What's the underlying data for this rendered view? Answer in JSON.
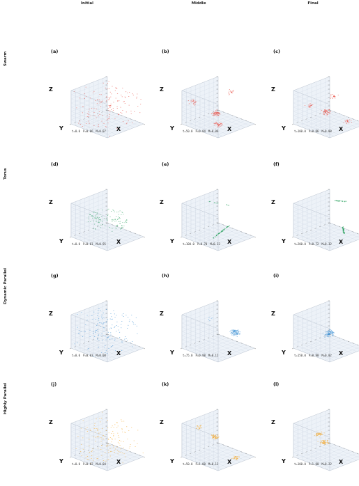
{
  "column_titles": [
    "Initial",
    "Middle",
    "Final"
  ],
  "row_titles": [
    "Swarm",
    "Torus",
    "Dynamic Parallel",
    "Highly Parallel"
  ],
  "colors": {
    "swarm": "#e8473c",
    "torus": "#2ca25f",
    "dynamic_parallel": "#3b8fd4",
    "highly_parallel": "#f5a623",
    "pane": "#edf2f8",
    "grid": "#d3dbe6",
    "edge": "#b9c2cf"
  },
  "chart_data": [
    {
      "type": "scatter",
      "panel_label": "(a)",
      "row": "Swarm",
      "column": "Initial",
      "xlabel": "X",
      "ylabel": "Y",
      "zlabel": "Z",
      "t": "t=0.0",
      "P": "P=0.06",
      "M": "M=0.07",
      "distribution": "uniform-random",
      "color": "#e8473c",
      "grid": true
    },
    {
      "type": "scatter",
      "panel_label": "(b)",
      "row": "Swarm",
      "column": "Middle",
      "xlabel": "X",
      "ylabel": "Y",
      "zlabel": "Z",
      "t": "t=50.0",
      "P": "P=0.04",
      "M": "M=0.06",
      "distribution": "clusters",
      "color": "#e8473c",
      "grid": true
    },
    {
      "type": "scatter",
      "panel_label": "(c)",
      "row": "Swarm",
      "column": "Final",
      "xlabel": "X",
      "ylabel": "Y",
      "zlabel": "Z",
      "t": "t=100.0",
      "P": "P=0.06",
      "M": "M=0.08",
      "distribution": "clusters",
      "color": "#e8473c",
      "grid": true
    },
    {
      "type": "scatter",
      "panel_label": "(d)",
      "row": "Torus",
      "column": "Initial",
      "xlabel": "X",
      "ylabel": "Y",
      "zlabel": "Z",
      "t": "t=0.0",
      "P": "P=0.01",
      "M": "M=0.95",
      "distribution": "torus-ring",
      "color": "#2ca25f",
      "grid": true
    },
    {
      "type": "scatter",
      "panel_label": "(e)",
      "row": "Torus",
      "column": "Middle",
      "xlabel": "X",
      "ylabel": "Y",
      "zlabel": "Z",
      "t": "t=100.0",
      "P": "P=0.70",
      "M": "M=0.22",
      "distribution": "streams",
      "color": "#2ca25f",
      "grid": true
    },
    {
      "type": "scatter",
      "panel_label": "(f)",
      "row": "Torus",
      "column": "Final",
      "xlabel": "X",
      "ylabel": "Y",
      "zlabel": "Z",
      "t": "t=200.0",
      "P": "P=0.72",
      "M": "M=0.32",
      "distribution": "streams",
      "color": "#2ca25f",
      "grid": true
    },
    {
      "type": "scatter",
      "panel_label": "(g)",
      "row": "Dynamic Parallel",
      "column": "Initial",
      "xlabel": "X",
      "ylabel": "Y",
      "zlabel": "Z",
      "t": "t=0.0",
      "P": "P=0.03",
      "M": "M=0.08",
      "distribution": "uniform-random",
      "color": "#3b8fd4",
      "grid": true
    },
    {
      "type": "scatter",
      "panel_label": "(h)",
      "row": "Dynamic Parallel",
      "column": "Middle",
      "xlabel": "X",
      "ylabel": "Y",
      "zlabel": "Z",
      "t": "t=75.0",
      "P": "P=0.98",
      "M": "M=0.12",
      "distribution": "single-cluster",
      "color": "#3b8fd4",
      "grid": true
    },
    {
      "type": "scatter",
      "panel_label": "(i)",
      "row": "Dynamic Parallel",
      "column": "Final",
      "xlabel": "X",
      "ylabel": "Y",
      "zlabel": "Z",
      "t": "t=150.0",
      "P": "P=0.98",
      "M": "M=0.02",
      "distribution": "single-cluster",
      "color": "#3b8fd4",
      "grid": true
    },
    {
      "type": "scatter",
      "panel_label": "(j)",
      "row": "Highly Parallel",
      "column": "Initial",
      "xlabel": "X",
      "ylabel": "Y",
      "zlabel": "Z",
      "t": "t=0.0",
      "P": "P=0.02",
      "M": "M=0.04",
      "distribution": "uniform-random",
      "color": "#f5a623",
      "grid": true
    },
    {
      "type": "scatter",
      "panel_label": "(k)",
      "row": "Highly Parallel",
      "column": "Middle",
      "xlabel": "X",
      "ylabel": "Y",
      "zlabel": "Z",
      "t": "t=50.0",
      "P": "P=1.00",
      "M": "M=0.12",
      "distribution": "clusters",
      "color": "#f5a623",
      "grid": true
    },
    {
      "type": "scatter",
      "panel_label": "(l)",
      "row": "Highly Parallel",
      "column": "Final",
      "xlabel": "X",
      "ylabel": "Y",
      "zlabel": "Z",
      "t": "t=100.0",
      "P": "P=1.00",
      "M": "M=0.22",
      "distribution": "clusters",
      "color": "#f5a623",
      "grid": true
    }
  ]
}
